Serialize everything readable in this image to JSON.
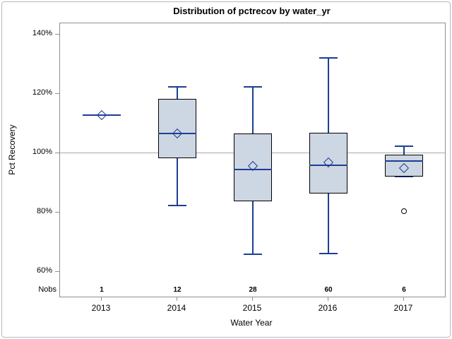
{
  "chart_data": {
    "type": "boxplot",
    "title": "Distribution of pctrecov by water_yr",
    "xlabel": "Water Year",
    "ylabel": "Pct Recovery",
    "nobs_label": "Nobs",
    "categories": [
      "2013",
      "2014",
      "2015",
      "2016",
      "2017"
    ],
    "nobs": [
      "1",
      "12",
      "28",
      "60",
      "6"
    ],
    "y_ticks": [
      140,
      120,
      100,
      80,
      60
    ],
    "y_tick_suffix": "%",
    "ylim": [
      51.7,
      143.7
    ],
    "reference_line": 100,
    "grid": "off",
    "legend": "none",
    "series": [
      {
        "category": "2013",
        "n": 1,
        "whisker_low": null,
        "q1": null,
        "median": 112.7,
        "mean": 112.7,
        "q3": null,
        "whisker_high": null,
        "outliers": []
      },
      {
        "category": "2014",
        "n": 12,
        "whisker_low": 82.3,
        "q1": 98.3,
        "median": 106.6,
        "mean": 106.6,
        "q3": 118.2,
        "whisker_high": 122.3,
        "outliers": []
      },
      {
        "category": "2015",
        "n": 28,
        "whisker_low": 66.0,
        "q1": 83.8,
        "median": 94.4,
        "mean": 95.6,
        "q3": 106.6,
        "whisker_high": 122.3,
        "outliers": []
      },
      {
        "category": "2016",
        "n": 60,
        "whisker_low": 66.1,
        "q1": 86.4,
        "median": 95.8,
        "mean": 96.8,
        "q3": 106.8,
        "whisker_high": 132.0,
        "outliers": []
      },
      {
        "category": "2017",
        "n": 6,
        "whisker_low": 92.2,
        "q1": 92.2,
        "median": 97.3,
        "mean": 94.9,
        "q3": 99.6,
        "whisker_high": 102.3,
        "outliers": [
          80.5
        ]
      }
    ],
    "colors": {
      "box_fill": "#cdd6e3",
      "box_border": "#000000",
      "line": "#1c3e94",
      "reference": "#a9a9a9",
      "frame": "#8d9093",
      "text": "#000000"
    }
  }
}
